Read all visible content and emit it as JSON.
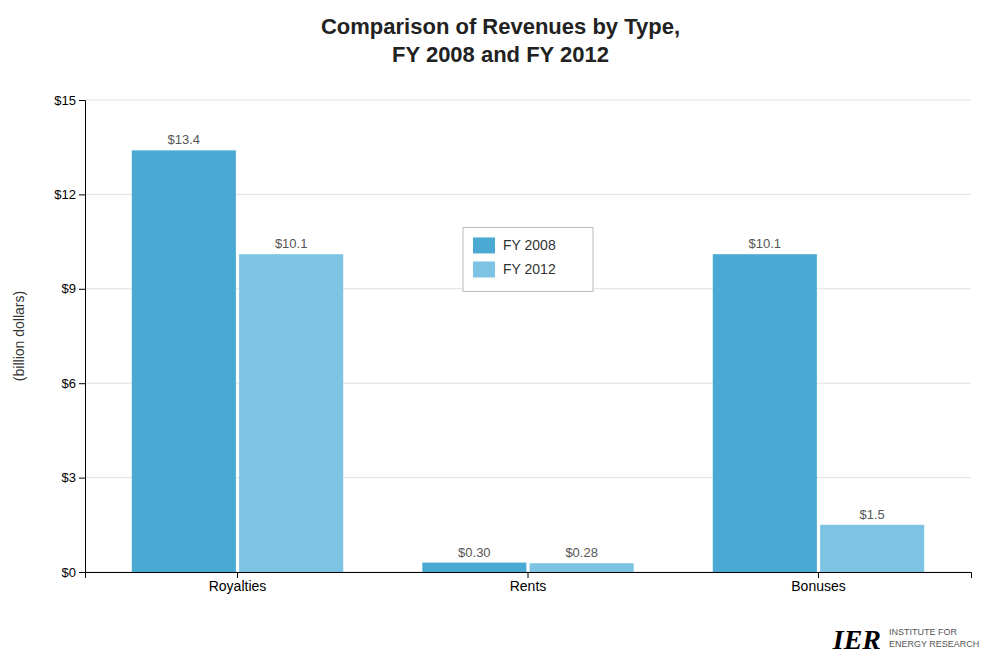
{
  "chart_data": {
    "type": "bar",
    "title": "Comparison of Revenues by Type,\nFY 2008 and FY 2012",
    "ylabel": "(billion dollars)",
    "categories": [
      "Royalties",
      "Rents",
      "Bonuses"
    ],
    "series": [
      {
        "name": "FY 2008",
        "color": "#4baad3",
        "values": [
          13.4,
          0.3,
          10.1
        ],
        "value_labels": [
          "$13.4",
          "$0.30",
          "$10.1"
        ]
      },
      {
        "name": "FY 2012",
        "color": "#7dc4e4",
        "values": [
          10.1,
          0.28,
          1.5
        ],
        "value_labels": [
          "$10.1",
          "$0.28",
          "$1.5"
        ]
      }
    ],
    "ylim": [
      0,
      15
    ],
    "yticks": [
      {
        "value": 0,
        "label": "$0"
      },
      {
        "value": 3,
        "label": "$3"
      },
      {
        "value": 6,
        "label": "$6"
      },
      {
        "value": 9,
        "label": "$9"
      },
      {
        "value": 12,
        "label": "$12"
      },
      {
        "value": 15,
        "label": "$15"
      }
    ],
    "grid": true,
    "legend": "center",
    "data_labels": true,
    "annotations": [
      "IER",
      "INSTITUTE FOR\nENERGY RESEARCH"
    ]
  }
}
